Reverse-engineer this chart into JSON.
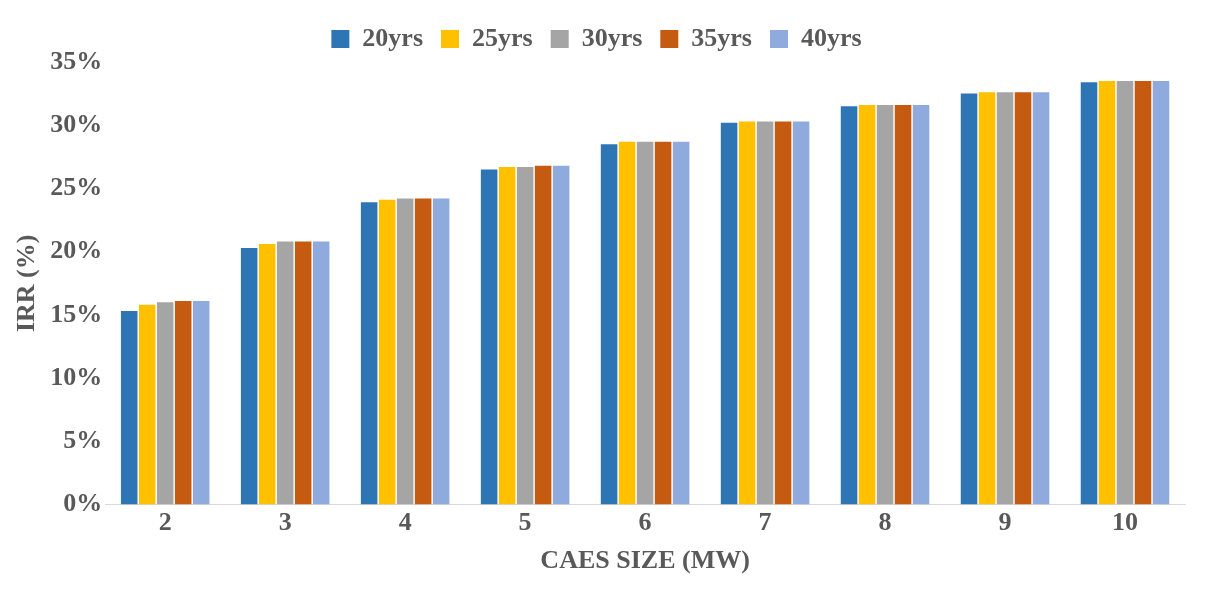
{
  "chart_data": {
    "type": "bar",
    "xlabel": "CAES SIZE (MW)",
    "ylabel": "IRR (%)",
    "categories": [
      "2",
      "3",
      "4",
      "5",
      "6",
      "7",
      "8",
      "9",
      "10"
    ],
    "series": [
      {
        "name": "20yrs",
        "color": "#2e75b6",
        "values": [
          15.3,
          20.3,
          23.9,
          26.5,
          28.5,
          30.2,
          31.5,
          32.5,
          33.4
        ]
      },
      {
        "name": "25yrs",
        "color": "#ffc000",
        "values": [
          15.8,
          20.6,
          24.1,
          26.7,
          28.7,
          30.3,
          31.6,
          32.6,
          33.5
        ]
      },
      {
        "name": "30yrs",
        "color": "#a5a5a5",
        "values": [
          16.0,
          20.8,
          24.2,
          26.7,
          28.7,
          30.3,
          31.6,
          32.6,
          33.5
        ]
      },
      {
        "name": "35yrs",
        "color": "#c55a11",
        "values": [
          16.1,
          20.8,
          24.2,
          26.8,
          28.7,
          30.3,
          31.6,
          32.6,
          33.5
        ]
      },
      {
        "name": "40yrs",
        "color": "#8faadc",
        "values": [
          16.1,
          20.8,
          24.2,
          26.8,
          28.7,
          30.3,
          31.6,
          32.6,
          33.5
        ]
      }
    ],
    "ylim": [
      0,
      35
    ],
    "yticks": [
      {
        "value": 0,
        "label": "0%"
      },
      {
        "value": 5,
        "label": "5%"
      },
      {
        "value": 10,
        "label": "10%"
      },
      {
        "value": 15,
        "label": "15%"
      },
      {
        "value": 20,
        "label": "20%"
      },
      {
        "value": 25,
        "label": "25%"
      },
      {
        "value": 30,
        "label": "30%"
      },
      {
        "value": 35,
        "label": "35%"
      }
    ],
    "grid": false,
    "legend": "top"
  }
}
